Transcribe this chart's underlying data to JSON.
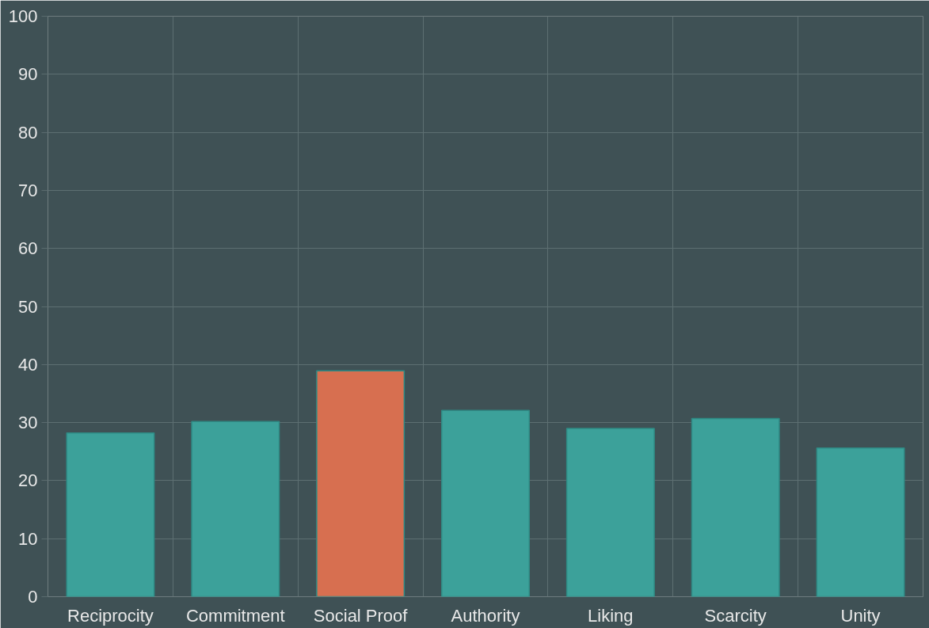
{
  "chart_data": {
    "type": "bar",
    "categories": [
      "Reciprocity",
      "Commitment",
      "Social Proof",
      "Authority",
      "Liking",
      "Scarcity",
      "Unity"
    ],
    "values": [
      28.2,
      30.2,
      38.9,
      32.1,
      29.0,
      30.7,
      25.6
    ],
    "colors": [
      "#3ca19a",
      "#3ca19a",
      "#d76f50",
      "#3ca19a",
      "#3ca19a",
      "#3ca19a",
      "#3ca19a"
    ],
    "ylim": [
      0,
      100
    ],
    "yticks": [
      0,
      10,
      20,
      30,
      40,
      50,
      60,
      70,
      80,
      90,
      100
    ],
    "grid": true
  }
}
